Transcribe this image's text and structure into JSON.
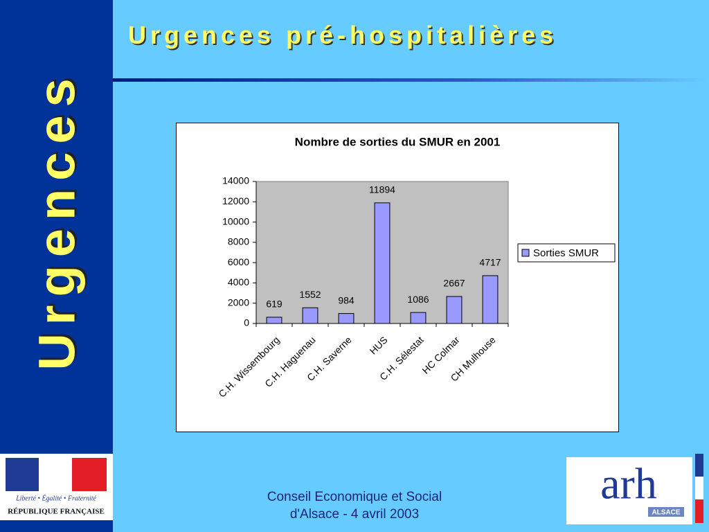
{
  "slide": {
    "title": "Urgences pré-hospitalières",
    "side_title": "Urgences",
    "footer": [
      "Conseil Economique et Social",
      "d'Alsace - 4 avril 2003"
    ],
    "left_logo": {
      "motto": "Liberté • Égalité • Fraternité",
      "name": "RÉPUBLIQUE FRANÇAISE"
    },
    "right_logo": {
      "mark": "arh",
      "region": "ALSACE"
    }
  },
  "chart_data": {
    "type": "bar",
    "title": "Nombre de sorties du SMUR en 2001",
    "categories": [
      "C.H. Wissembourg",
      "C.H. Haguenau",
      "C.H. Saverne",
      "HUS",
      "C.H. Sélestat",
      "HC Colmar",
      "CH Mulhouse"
    ],
    "series": [
      {
        "name": "Sorties SMUR",
        "color": "#9999ff",
        "values": [
          619,
          1552,
          984,
          11894,
          1086,
          2667,
          4717
        ]
      }
    ],
    "ylim": [
      0,
      14000
    ],
    "yticks": [
      0,
      2000,
      4000,
      6000,
      8000,
      10000,
      12000,
      14000
    ],
    "legend": "right",
    "plot_background": "#c0c0c0"
  }
}
